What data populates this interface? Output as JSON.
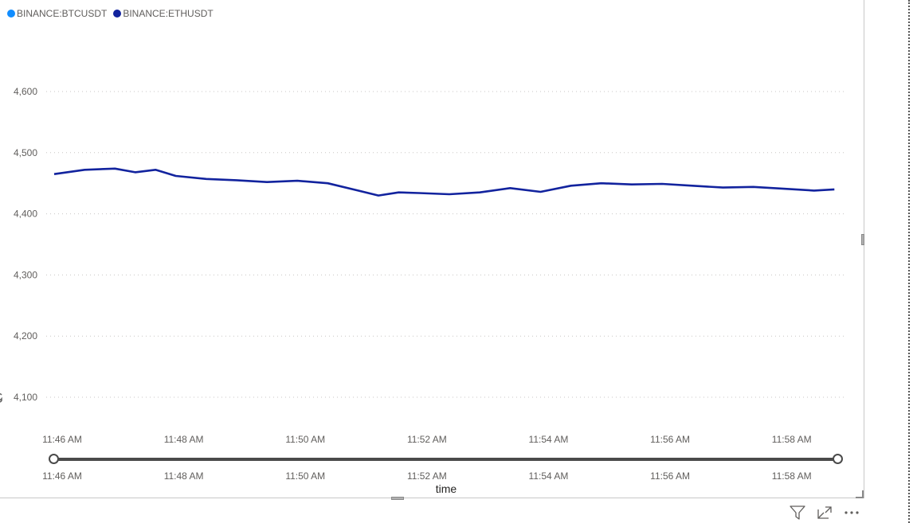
{
  "legend": {
    "items": [
      {
        "label": "BINANCE:BTCUSDT",
        "color": "#118DFF"
      },
      {
        "label": "BINANCE:ETHUSDT",
        "color": "#12239E"
      }
    ]
  },
  "chart_data": {
    "type": "line",
    "xlabel": "time",
    "ylabel": "",
    "title": "",
    "xlim": [
      "11:46 AM",
      "11:59 AM"
    ],
    "ylim": [
      4050,
      4650
    ],
    "yticks": [
      4100,
      4200,
      4300,
      4400,
      4500,
      4600
    ],
    "ytick_labels": [
      "4,100",
      "4,200",
      "4,300",
      "4,400",
      "4,500",
      "4,600"
    ],
    "xticks": [
      "11:46 AM",
      "11:48 AM",
      "11:50 AM",
      "11:52 AM",
      "11:54 AM",
      "11:56 AM",
      "11:58 AM"
    ],
    "grid": true,
    "legend_position": "top-left",
    "series": [
      {
        "name": "BINANCE:ETHUSDT",
        "color": "#12239E",
        "x": [
          "11:46:00",
          "11:46:30",
          "11:47:00",
          "11:47:20",
          "11:47:40",
          "11:48:00",
          "11:48:30",
          "11:49:00",
          "11:49:30",
          "11:50:00",
          "11:50:30",
          "11:51:00",
          "11:51:20",
          "11:51:40",
          "11:52:00",
          "11:52:30",
          "11:53:00",
          "11:53:30",
          "11:54:00",
          "11:54:30",
          "11:55:00",
          "11:55:30",
          "11:56:00",
          "11:56:30",
          "11:57:00",
          "11:57:30",
          "11:58:00",
          "11:58:30",
          "11:58:50"
        ],
        "values": [
          4465,
          4472,
          4474,
          4468,
          4472,
          4462,
          4457,
          4455,
          4452,
          4454,
          4450,
          4438,
          4430,
          4435,
          4434,
          4432,
          4435,
          4442,
          4436,
          4446,
          4450,
          4448,
          4449,
          4446,
          4443,
          4444,
          4441,
          4438,
          4440
        ]
      }
    ]
  },
  "toolbar": {
    "icons": [
      "filter-icon",
      "focus-mode-icon",
      "more-options-icon"
    ]
  }
}
